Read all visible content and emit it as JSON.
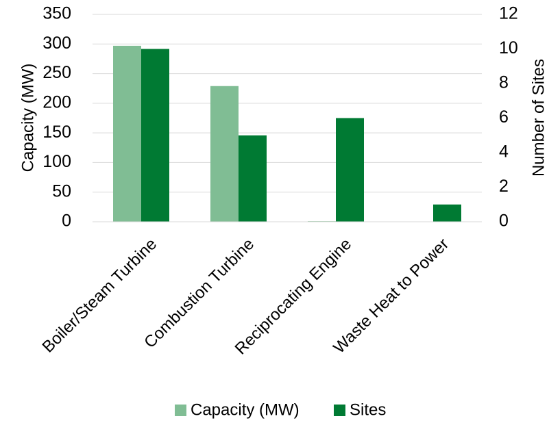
{
  "chart_data": {
    "type": "bar",
    "categories": [
      "Boiler/Steam Turbine",
      "Combustion Turbine",
      "Reciprocating Engine",
      "Waste Heat to Power"
    ],
    "series": [
      {
        "name": "Capacity (MW)",
        "axis": "left",
        "color": "#80bd94",
        "values": [
          297,
          229,
          1,
          0
        ]
      },
      {
        "name": "Sites",
        "axis": "right",
        "color": "#007a33",
        "values": [
          10,
          5,
          6,
          1
        ]
      }
    ],
    "y_left": {
      "label": "Capacity (MW)",
      "lim": [
        0,
        350
      ],
      "ticks": [
        0,
        50,
        100,
        150,
        200,
        250,
        300,
        350
      ]
    },
    "y_right": {
      "label": "Number of Sites",
      "lim": [
        0,
        12
      ],
      "ticks": [
        0,
        2,
        4,
        6,
        8,
        10,
        12
      ]
    },
    "grid": true,
    "legend": {
      "placement": "bottom",
      "entries": [
        "Capacity (MW)",
        "Sites"
      ]
    }
  }
}
